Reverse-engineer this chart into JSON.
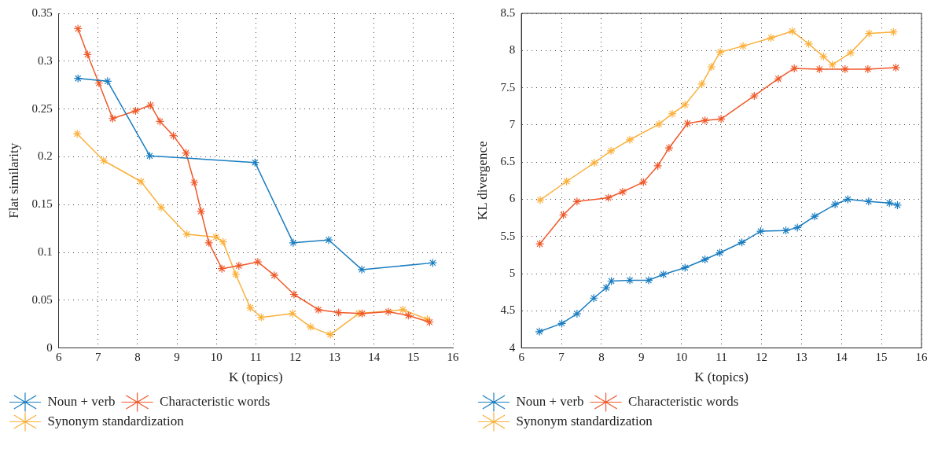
{
  "chart_data": [
    {
      "type": "line",
      "xlabel": "K (topics)",
      "ylabel": "Flat similarity",
      "xlim": [
        6,
        16
      ],
      "ylim": [
        0,
        0.35
      ],
      "xticks": [
        6,
        7,
        8,
        9,
        10,
        11,
        12,
        13,
        14,
        15,
        16
      ],
      "yticks": [
        0,
        0.05,
        0.1,
        0.15,
        0.2,
        0.25,
        0.3,
        0.35
      ],
      "grid": true,
      "legend": "bottom",
      "marker": "cross",
      "line_style": "solid",
      "series": [
        {
          "name": "Noun + verb",
          "color": "#1a7dc0",
          "x": [
            6.49,
            7.24,
            8.31,
            10.98,
            11.95,
            12.85,
            13.69,
            15.49
          ],
          "values": [
            0.282,
            0.279,
            0.201,
            0.194,
            0.11,
            0.113,
            0.082,
            0.089
          ]
        },
        {
          "name": "Characteristic words",
          "color": "#f0592a",
          "x": [
            6.49,
            6.73,
            7.02,
            7.37,
            7.95,
            8.33,
            8.57,
            8.91,
            9.23,
            9.44,
            9.61,
            9.81,
            10.14,
            10.57,
            11.05,
            11.47,
            11.97,
            12.59,
            13.1,
            13.7,
            14.36,
            14.87,
            15.41
          ],
          "values": [
            0.334,
            0.307,
            0.277,
            0.24,
            0.248,
            0.254,
            0.237,
            0.222,
            0.204,
            0.173,
            0.143,
            0.11,
            0.083,
            0.086,
            0.09,
            0.076,
            0.056,
            0.04,
            0.037,
            0.036,
            0.038,
            0.034,
            0.027
          ]
        },
        {
          "name": "Synonym standardization",
          "color": "#fbb03b",
          "x": [
            6.47,
            7.14,
            8.09,
            8.6,
            9.25,
            9.99,
            10.17,
            10.49,
            10.86,
            11.14,
            11.93,
            12.39,
            12.89,
            13.61,
            14.73,
            15.35
          ],
          "values": [
            0.224,
            0.196,
            0.174,
            0.147,
            0.119,
            0.116,
            0.111,
            0.077,
            0.042,
            0.032,
            0.036,
            0.022,
            0.014,
            0.036,
            0.04,
            0.03
          ]
        }
      ]
    },
    {
      "type": "line",
      "xlabel": "K (topics)",
      "ylabel": "KL divergence",
      "xlim": [
        6,
        16
      ],
      "ylim": [
        4,
        8.5
      ],
      "xticks": [
        6,
        7,
        8,
        9,
        10,
        11,
        12,
        13,
        14,
        15,
        16
      ],
      "yticks": [
        4,
        4.5,
        5,
        5.5,
        6,
        6.5,
        7,
        7.5,
        8,
        8.5
      ],
      "grid": true,
      "legend": "bottom",
      "marker": "cross",
      "line_style": "solid",
      "series": [
        {
          "name": "Noun + verb",
          "color": "#1a7dc0",
          "x": [
            6.45,
            7.01,
            7.39,
            7.81,
            8.12,
            8.25,
            8.71,
            9.18,
            9.55,
            10.09,
            10.59,
            10.96,
            11.51,
            11.98,
            12.61,
            12.9,
            13.33,
            13.84,
            14.16,
            14.68,
            15.2,
            15.4
          ],
          "values": [
            4.22,
            4.33,
            4.46,
            4.67,
            4.81,
            4.9,
            4.91,
            4.91,
            4.99,
            5.08,
            5.19,
            5.28,
            5.42,
            5.57,
            5.58,
            5.62,
            5.77,
            5.93,
            6.0,
            5.97,
            5.95,
            5.92
          ]
        },
        {
          "name": "Characteristic words",
          "color": "#f0592a",
          "x": [
            6.46,
            7.05,
            7.39,
            8.17,
            8.53,
            9.05,
            9.41,
            9.69,
            10.15,
            10.59,
            10.99,
            11.82,
            12.42,
            12.82,
            13.45,
            14.09,
            14.66,
            15.36
          ],
          "values": [
            5.4,
            5.79,
            5.97,
            6.02,
            6.1,
            6.23,
            6.45,
            6.69,
            7.02,
            7.06,
            7.08,
            7.39,
            7.62,
            7.76,
            7.75,
            7.75,
            7.75,
            7.77
          ]
        },
        {
          "name": "Synonym standardization",
          "color": "#fbb03b",
          "x": [
            6.47,
            7.13,
            7.82,
            8.24,
            8.71,
            9.44,
            9.77,
            10.09,
            10.51,
            10.75,
            10.97,
            11.54,
            12.24,
            12.77,
            13.18,
            13.55,
            13.77,
            14.23,
            14.69,
            15.3
          ],
          "values": [
            5.99,
            6.24,
            6.49,
            6.65,
            6.8,
            7.01,
            7.15,
            7.27,
            7.55,
            7.78,
            7.98,
            8.06,
            8.17,
            8.26,
            8.09,
            7.92,
            7.81,
            7.97,
            8.23,
            8.25
          ]
        }
      ]
    }
  ]
}
